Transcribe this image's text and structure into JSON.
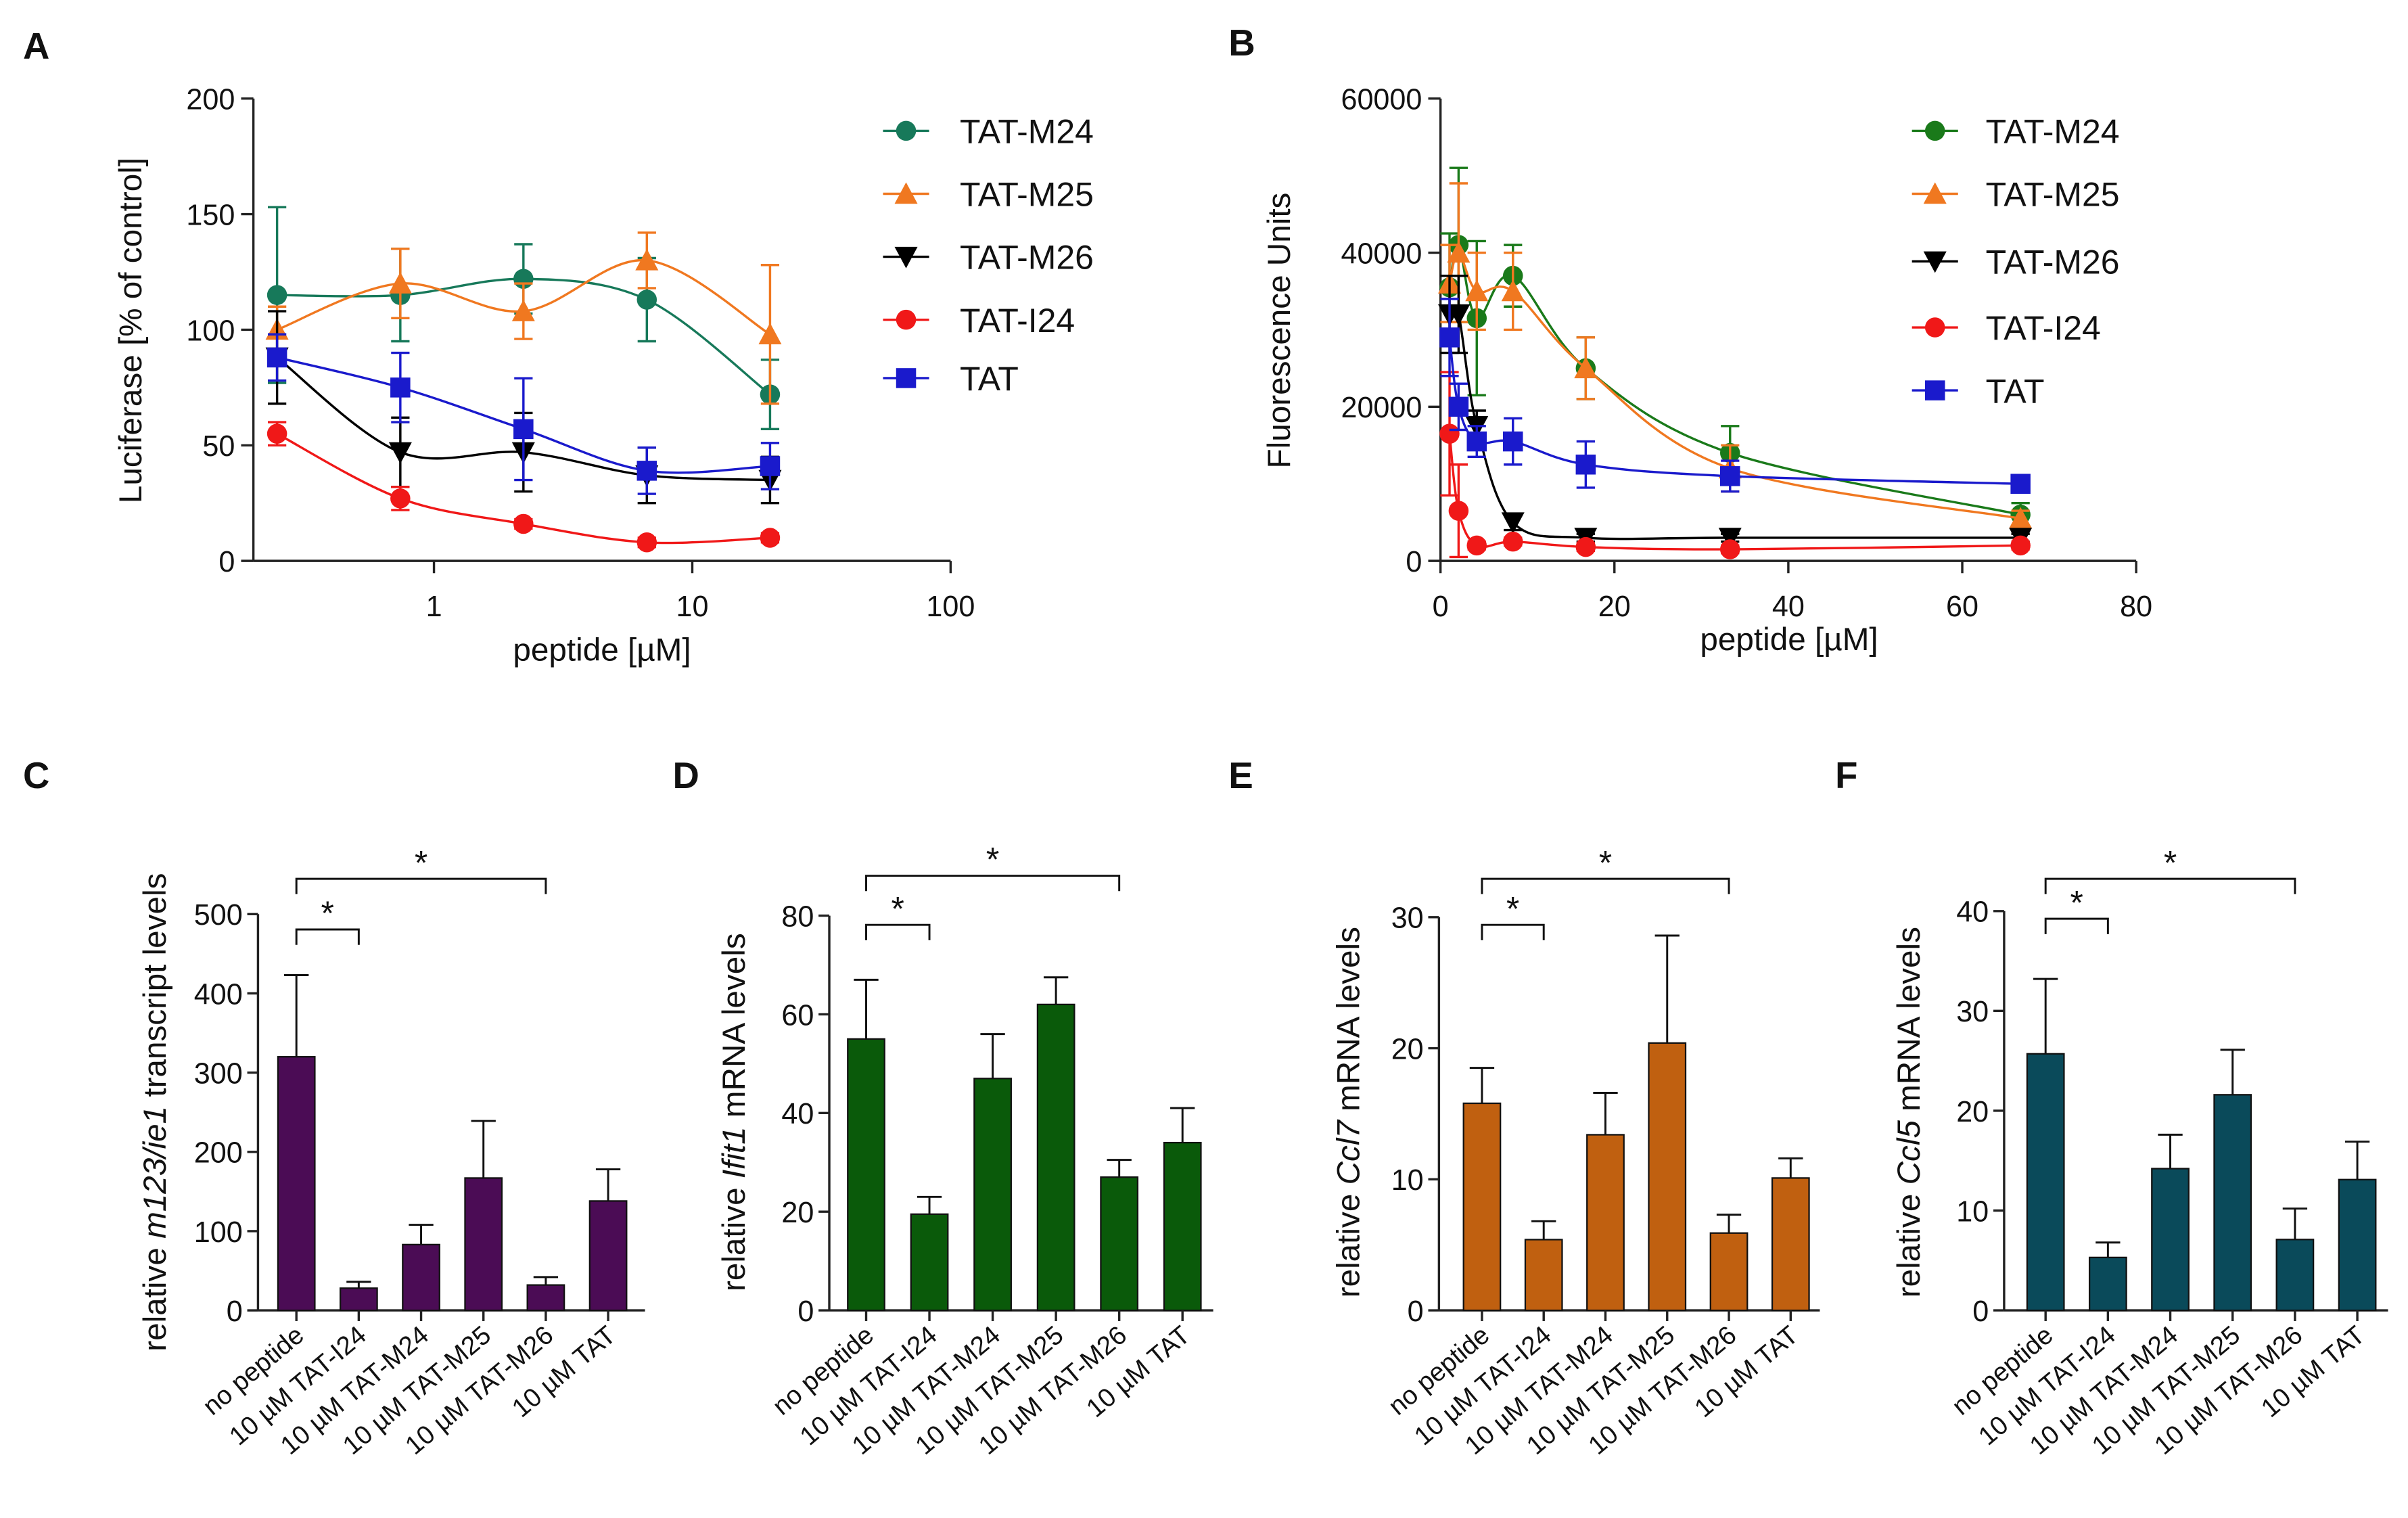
{
  "chart_data": [
    {
      "type": "scatter",
      "label": "A",
      "xlabel": "peptide [µM]",
      "ylabel": "Luciferase [% of control]",
      "xscale": "log",
      "x": [
        0.247,
        0.741,
        2.22,
        6.67,
        20
      ],
      "xlim": [
        0.2,
        100
      ],
      "xticks": [
        1,
        10,
        100
      ],
      "ylim": [
        0,
        200
      ],
      "yticks": [
        0,
        50,
        100,
        150,
        200
      ],
      "series": [
        {
          "name": "TAT-M24",
          "color": "#17795a",
          "marker": "circle",
          "values": [
            115,
            115,
            122,
            113,
            72
          ],
          "errors": [
            38,
            20,
            15,
            18,
            15
          ]
        },
        {
          "name": "TAT-M25",
          "color": "#f07820",
          "marker": "triangle",
          "values": [
            100,
            120,
            108,
            130,
            98
          ],
          "errors": [
            10,
            15,
            12,
            12,
            30
          ]
        },
        {
          "name": "TAT-M26",
          "color": "#000000",
          "marker": "triangle-down",
          "values": [
            88,
            47,
            47,
            37,
            35
          ],
          "errors": [
            20,
            15,
            17,
            12,
            10
          ]
        },
        {
          "name": "TAT-I24",
          "color": "#f01818",
          "marker": "circle",
          "values": [
            55,
            27,
            16,
            8,
            10
          ],
          "errors": [
            5,
            5,
            2,
            2,
            2
          ]
        },
        {
          "name": "TAT",
          "color": "#1a1acc",
          "marker": "square",
          "values": [
            88,
            75,
            57,
            39,
            41
          ],
          "errors": [
            10,
            15,
            22,
            10,
            10
          ]
        }
      ]
    },
    {
      "type": "scatter",
      "label": "B",
      "xlabel": "peptide [µM]",
      "ylabel": "Fluorescence Units",
      "xscale": "linear",
      "x": [
        1.04,
        2.08,
        4.17,
        8.33,
        16.7,
        33.3,
        66.7
      ],
      "xlim": [
        0,
        80
      ],
      "xticks": [
        0,
        20,
        40,
        60,
        80
      ],
      "ylim": [
        0,
        60000
      ],
      "yticks": [
        0,
        20000,
        40000,
        60000
      ],
      "series": [
        {
          "name": "TAT-M24",
          "color": "#1a7a1a",
          "marker": "circle",
          "values": [
            35500,
            41000,
            31500,
            37000,
            25000,
            14000,
            6000
          ],
          "errors": [
            7000,
            10000,
            10000,
            4000,
            4000,
            3500,
            1500
          ]
        },
        {
          "name": "TAT-M25",
          "color": "#f07820",
          "marker": "triangle",
          "values": [
            36000,
            40000,
            35000,
            35000,
            25000,
            12000,
            5500
          ],
          "errors": [
            5000,
            9000,
            5000,
            5000,
            4000,
            3000,
            1000
          ]
        },
        {
          "name": "TAT-M26",
          "color": "#000000",
          "marker": "triangle-down",
          "values": [
            32000,
            32000,
            17500,
            5000,
            3000,
            3000,
            3000
          ],
          "errors": [
            5000,
            5000,
            2000,
            1000,
            500,
            500,
            500
          ]
        },
        {
          "name": "TAT-I24",
          "color": "#f01818",
          "marker": "circle",
          "values": [
            16500,
            6500,
            2000,
            2500,
            1800,
            1500,
            2000
          ],
          "errors": [
            8000,
            6000,
            500,
            500,
            500,
            500,
            500
          ]
        },
        {
          "name": "TAT",
          "color": "#1a1acc",
          "marker": "square",
          "values": [
            29000,
            20000,
            15500,
            15500,
            12500,
            11000,
            10000
          ],
          "errors": [
            5000,
            3000,
            2000,
            3000,
            3000,
            2000,
            1000
          ]
        }
      ]
    },
    {
      "type": "bar",
      "label": "C",
      "ylabel": [
        "relative ",
        "m123/ie1",
        " transcript levels"
      ],
      "color": "#4b0c55",
      "categories": [
        "no peptide",
        "10 µM TAT-I24",
        "10 µM TAT-M24",
        "10 µM TAT-M25",
        "10 µM TAT-M26",
        "10 µM TAT"
      ],
      "values": [
        320,
        28,
        83,
        167,
        32,
        138
      ],
      "errors": [
        103,
        8,
        25,
        72,
        10,
        40
      ],
      "ylim": [
        0,
        500
      ],
      "yticks": [
        0,
        100,
        200,
        300,
        400,
        500
      ],
      "significance": [
        {
          "from": 0,
          "to": 1,
          "label": "*"
        },
        {
          "from": 0,
          "to": 4,
          "label": "*"
        }
      ]
    },
    {
      "type": "bar",
      "label": "D",
      "ylabel": [
        "relative ",
        "Ifit1",
        " mRNA levels"
      ],
      "color": "#0a5a0a",
      "categories": [
        "no peptide",
        "10 µM TAT-I24",
        "10 µM TAT-M24",
        "10 µM TAT-M25",
        "10 µM TAT-M26",
        "10 µM TAT"
      ],
      "values": [
        55,
        19.5,
        47,
        62,
        27,
        34
      ],
      "errors": [
        12,
        3.5,
        9,
        5.5,
        3.5,
        7
      ],
      "ylim": [
        0,
        80
      ],
      "yticks": [
        0,
        20,
        40,
        60,
        80
      ],
      "significance": [
        {
          "from": 0,
          "to": 1,
          "label": "*"
        },
        {
          "from": 0,
          "to": 4,
          "label": "*"
        }
      ]
    },
    {
      "type": "bar",
      "label": "E",
      "ylabel": [
        "relative ",
        "Ccl7",
        " mRNA levels"
      ],
      "color": "#c06010",
      "categories": [
        "no peptide",
        "10 µM TAT-I24",
        "10 µM TAT-M24",
        "10 µM TAT-M25",
        "10 µM TAT-M26",
        "10 µM TAT"
      ],
      "values": [
        15.8,
        5.4,
        13.4,
        20.4,
        5.9,
        10.1
      ],
      "errors": [
        2.7,
        1.4,
        3.2,
        8.2,
        1.4,
        1.5
      ],
      "ylim": [
        0,
        30
      ],
      "yticks": [
        0,
        10,
        20,
        30
      ],
      "significance": [
        {
          "from": 0,
          "to": 1,
          "label": "*"
        },
        {
          "from": 0,
          "to": 4,
          "label": "*"
        }
      ]
    },
    {
      "type": "bar",
      "label": "F",
      "ylabel": [
        "relative ",
        "Ccl5",
        " mRNA levels"
      ],
      "color": "#0a4a5a",
      "categories": [
        "no peptide",
        "10 µM TAT-I24",
        "10 µM TAT-M24",
        "10 µM TAT-M25",
        "10 µM TAT-M26",
        "10 µM TAT"
      ],
      "values": [
        25.7,
        5.3,
        14.2,
        21.6,
        7.1,
        13.1
      ],
      "errors": [
        7.5,
        1.5,
        3.4,
        4.5,
        3.1,
        3.8
      ],
      "ylim": [
        0,
        40
      ],
      "yticks": [
        0,
        10,
        20,
        30,
        40
      ],
      "significance": [
        {
          "from": 0,
          "to": 1,
          "label": "*"
        },
        {
          "from": 0,
          "to": 4,
          "label": "*"
        }
      ]
    }
  ]
}
